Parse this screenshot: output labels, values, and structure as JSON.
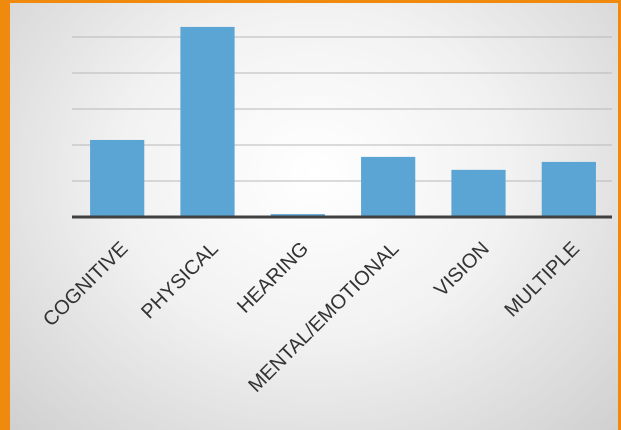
{
  "chart_data": {
    "type": "bar",
    "categories": [
      "COGNITIVE",
      "PHYSICAL",
      "HEARING",
      "MENTAL/EMOTIONAL",
      "VISION",
      "MULTIPLE"
    ],
    "values": [
      2.14,
      5.28,
      0.08,
      1.67,
      1.31,
      1.53
    ],
    "color": "#5aa5d3",
    "ylim": [
      0,
      5.5
    ],
    "yticks": [
      0,
      1,
      2,
      3,
      4,
      5
    ],
    "grid": true
  }
}
